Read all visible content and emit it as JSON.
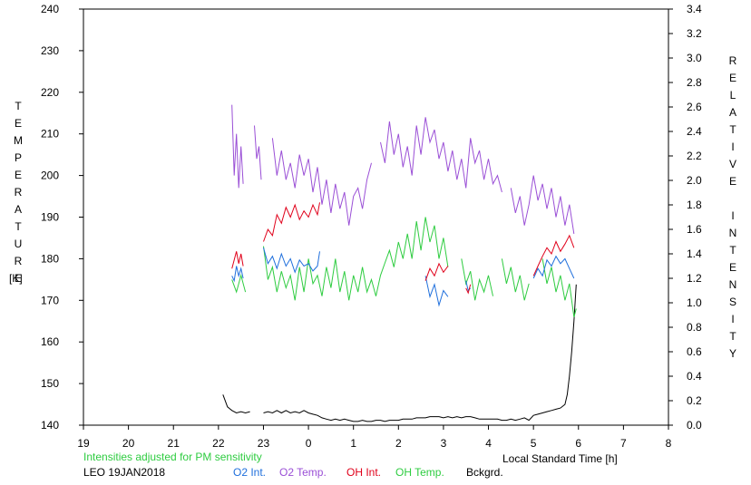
{
  "chart_data": {
    "type": "line",
    "xlabel": "Local Standard Time [h]",
    "ylabel_left": "TEMPERATURE",
    "ylabel_left_unit": "[K]",
    "ylabel_right": "RELATIVE INTENSITY",
    "note": "Intensities adjusted for PM sensitivity",
    "station_date": "LEO 19JAN2018",
    "x_ticks": [
      "19",
      "20",
      "21",
      "22",
      "23",
      "0",
      "1",
      "2",
      "3",
      "4",
      "5",
      "6",
      "7",
      "8"
    ],
    "xlim": [
      19,
      32
    ],
    "y_left_ticks": [
      "140",
      "150",
      "160",
      "170",
      "180",
      "190",
      "200",
      "210",
      "220",
      "230",
      "240"
    ],
    "ylim_left": [
      140,
      240
    ],
    "y_right_ticks": [
      "0.0",
      "0.2",
      "0.4",
      "0.6",
      "0.8",
      "1.0",
      "1.2",
      "1.4",
      "1.6",
      "1.8",
      "2.0",
      "2.2",
      "2.4",
      "2.6",
      "2.8",
      "3.0",
      "3.2",
      "3.4"
    ],
    "ylim_right": [
      0,
      3.4
    ],
    "grid": false,
    "legend_position": "bottom",
    "series": [
      {
        "name": "O2 Int.",
        "axis": "right",
        "color": "#1f6fdc",
        "points": [
          [
            22.3,
            1.22
          ],
          [
            22.35,
            1.18
          ],
          [
            22.4,
            1.3
          ],
          [
            22.45,
            1.22
          ],
          [
            22.5,
            1.28
          ],
          [
            22.55,
            1.2
          ],
          [
            23.0,
            1.45
          ],
          [
            23.1,
            1.32
          ],
          [
            23.2,
            1.38
          ],
          [
            23.3,
            1.28
          ],
          [
            23.4,
            1.4
          ],
          [
            23.5,
            1.3
          ],
          [
            23.6,
            1.36
          ],
          [
            23.7,
            1.25
          ],
          [
            23.8,
            1.35
          ],
          [
            23.9,
            1.3
          ],
          [
            24.0,
            1.32
          ],
          [
            24.1,
            1.26
          ],
          [
            24.2,
            1.3
          ],
          [
            24.25,
            1.42
          ],
          [
            26.6,
            1.22
          ],
          [
            26.7,
            1.05
          ],
          [
            26.8,
            1.15
          ],
          [
            26.9,
            0.98
          ],
          [
            27.0,
            1.1
          ],
          [
            27.1,
            1.05
          ],
          [
            27.5,
            1.18
          ],
          [
            27.55,
            1.1
          ],
          [
            27.6,
            1.12
          ],
          [
            29.0,
            1.2
          ],
          [
            29.1,
            1.28
          ],
          [
            29.2,
            1.22
          ],
          [
            29.3,
            1.35
          ],
          [
            29.4,
            1.3
          ],
          [
            29.5,
            1.38
          ],
          [
            29.6,
            1.32
          ],
          [
            29.7,
            1.36
          ],
          [
            29.8,
            1.28
          ],
          [
            29.9,
            1.2
          ]
        ]
      },
      {
        "name": "O2 Temp.",
        "axis": "left",
        "color": "#9a4fd6",
        "points": [
          [
            22.3,
            217
          ],
          [
            22.35,
            200
          ],
          [
            22.4,
            210
          ],
          [
            22.45,
            197
          ],
          [
            22.5,
            207
          ],
          [
            22.55,
            198
          ],
          [
            22.8,
            212
          ],
          [
            22.85,
            204
          ],
          [
            22.9,
            207
          ],
          [
            22.95,
            199
          ],
          [
            23.2,
            209
          ],
          [
            23.3,
            200
          ],
          [
            23.4,
            206
          ],
          [
            23.5,
            199
          ],
          [
            23.6,
            203
          ],
          [
            23.7,
            197
          ],
          [
            23.8,
            205
          ],
          [
            23.9,
            200
          ],
          [
            24.0,
            204
          ],
          [
            24.1,
            196
          ],
          [
            24.2,
            202
          ],
          [
            24.3,
            193
          ],
          [
            24.4,
            199
          ],
          [
            24.5,
            191
          ],
          [
            24.6,
            198
          ],
          [
            24.7,
            192
          ],
          [
            24.8,
            196
          ],
          [
            24.9,
            188
          ],
          [
            25.0,
            195
          ],
          [
            25.1,
            197
          ],
          [
            25.2,
            192
          ],
          [
            25.3,
            199
          ],
          [
            25.4,
            203
          ],
          [
            25.6,
            208
          ],
          [
            25.7,
            203
          ],
          [
            25.8,
            213
          ],
          [
            25.9,
            205
          ],
          [
            26.0,
            210
          ],
          [
            26.1,
            202
          ],
          [
            26.2,
            207
          ],
          [
            26.3,
            200
          ],
          [
            26.4,
            212
          ],
          [
            26.5,
            205
          ],
          [
            26.6,
            214
          ],
          [
            26.7,
            208
          ],
          [
            26.8,
            211
          ],
          [
            26.9,
            204
          ],
          [
            27.0,
            208
          ],
          [
            27.1,
            201
          ],
          [
            27.2,
            206
          ],
          [
            27.3,
            199
          ],
          [
            27.4,
            204
          ],
          [
            27.5,
            197
          ],
          [
            27.6,
            209
          ],
          [
            27.7,
            203
          ],
          [
            27.8,
            206
          ],
          [
            27.9,
            199
          ],
          [
            28.0,
            204
          ],
          [
            28.1,
            198
          ],
          [
            28.2,
            200
          ],
          [
            28.3,
            196
          ],
          [
            28.5,
            197
          ],
          [
            28.6,
            191
          ],
          [
            28.7,
            195
          ],
          [
            28.8,
            188
          ],
          [
            28.9,
            193
          ],
          [
            29.0,
            200
          ],
          [
            29.1,
            194
          ],
          [
            29.2,
            198
          ],
          [
            29.3,
            192
          ],
          [
            29.4,
            197
          ],
          [
            29.5,
            190
          ],
          [
            29.6,
            195
          ],
          [
            29.7,
            188
          ],
          [
            29.8,
            193
          ],
          [
            29.9,
            186
          ]
        ]
      },
      {
        "name": "OH Int.",
        "axis": "right",
        "color": "#e0001a",
        "points": [
          [
            22.3,
            1.28
          ],
          [
            22.35,
            1.35
          ],
          [
            22.4,
            1.42
          ],
          [
            22.45,
            1.32
          ],
          [
            22.5,
            1.4
          ],
          [
            22.55,
            1.3
          ],
          [
            23.0,
            1.5
          ],
          [
            23.1,
            1.6
          ],
          [
            23.2,
            1.55
          ],
          [
            23.3,
            1.72
          ],
          [
            23.4,
            1.65
          ],
          [
            23.5,
            1.78
          ],
          [
            23.6,
            1.7
          ],
          [
            23.7,
            1.8
          ],
          [
            23.8,
            1.68
          ],
          [
            23.9,
            1.75
          ],
          [
            24.0,
            1.7
          ],
          [
            24.1,
            1.8
          ],
          [
            24.2,
            1.72
          ],
          [
            24.25,
            1.82
          ],
          [
            26.6,
            1.18
          ],
          [
            26.7,
            1.28
          ],
          [
            26.8,
            1.22
          ],
          [
            26.9,
            1.32
          ],
          [
            27.0,
            1.25
          ],
          [
            27.1,
            1.3
          ],
          [
            27.5,
            1.12
          ],
          [
            27.55,
            1.08
          ],
          [
            27.6,
            1.15
          ],
          [
            29.0,
            1.22
          ],
          [
            29.1,
            1.3
          ],
          [
            29.2,
            1.38
          ],
          [
            29.3,
            1.45
          ],
          [
            29.4,
            1.4
          ],
          [
            29.5,
            1.5
          ],
          [
            29.6,
            1.42
          ],
          [
            29.7,
            1.48
          ],
          [
            29.8,
            1.55
          ],
          [
            29.9,
            1.45
          ]
        ]
      },
      {
        "name": "OH Temp.",
        "axis": "left",
        "color": "#2ecc40",
        "points": [
          [
            22.3,
            175
          ],
          [
            22.4,
            172
          ],
          [
            22.5,
            176
          ],
          [
            22.6,
            172
          ],
          [
            23.0,
            183
          ],
          [
            23.1,
            175
          ],
          [
            23.2,
            178
          ],
          [
            23.3,
            172
          ],
          [
            23.4,
            177
          ],
          [
            23.5,
            173
          ],
          [
            23.6,
            176
          ],
          [
            23.7,
            170
          ],
          [
            23.8,
            178
          ],
          [
            23.9,
            172
          ],
          [
            24.0,
            180
          ],
          [
            24.1,
            174
          ],
          [
            24.2,
            176
          ],
          [
            24.3,
            171
          ],
          [
            24.4,
            178
          ],
          [
            24.5,
            173
          ],
          [
            24.6,
            180
          ],
          [
            24.7,
            172
          ],
          [
            24.8,
            177
          ],
          [
            24.9,
            170
          ],
          [
            25.0,
            176
          ],
          [
            25.1,
            172
          ],
          [
            25.2,
            178
          ],
          [
            25.3,
            172
          ],
          [
            25.4,
            175
          ],
          [
            25.5,
            171
          ],
          [
            25.6,
            176
          ],
          [
            25.7,
            179
          ],
          [
            25.8,
            182
          ],
          [
            25.9,
            178
          ],
          [
            26.0,
            184
          ],
          [
            26.1,
            180
          ],
          [
            26.2,
            186
          ],
          [
            26.3,
            180
          ],
          [
            26.4,
            189
          ],
          [
            26.5,
            182
          ],
          [
            26.6,
            190
          ],
          [
            26.7,
            184
          ],
          [
            26.8,
            188
          ],
          [
            26.9,
            180
          ],
          [
            27.0,
            185
          ],
          [
            27.1,
            178
          ],
          [
            27.4,
            180
          ],
          [
            27.5,
            174
          ],
          [
            27.6,
            177
          ],
          [
            27.7,
            170
          ],
          [
            27.8,
            175
          ],
          [
            27.9,
            172
          ],
          [
            28.0,
            176
          ],
          [
            28.1,
            171
          ],
          [
            28.3,
            180
          ],
          [
            28.4,
            174
          ],
          [
            28.5,
            178
          ],
          [
            28.6,
            172
          ],
          [
            28.7,
            176
          ],
          [
            28.8,
            170
          ],
          [
            28.9,
            174
          ],
          [
            29.2,
            180
          ],
          [
            29.3,
            174
          ],
          [
            29.4,
            178
          ],
          [
            29.5,
            172
          ],
          [
            29.6,
            176
          ],
          [
            29.7,
            170
          ],
          [
            29.8,
            174
          ],
          [
            29.9,
            166
          ],
          [
            29.95,
            168
          ]
        ]
      },
      {
        "name": "Bckgrd.",
        "axis": "right",
        "color": "#000000",
        "points": [
          [
            22.1,
            0.25
          ],
          [
            22.2,
            0.15
          ],
          [
            22.3,
            0.12
          ],
          [
            22.4,
            0.1
          ],
          [
            22.5,
            0.11
          ],
          [
            22.6,
            0.1
          ],
          [
            22.7,
            0.11
          ],
          [
            23.0,
            0.1
          ],
          [
            23.1,
            0.11
          ],
          [
            23.2,
            0.1
          ],
          [
            23.3,
            0.12
          ],
          [
            23.4,
            0.1
          ],
          [
            23.5,
            0.12
          ],
          [
            23.6,
            0.1
          ],
          [
            23.7,
            0.11
          ],
          [
            23.8,
            0.1
          ],
          [
            23.9,
            0.12
          ],
          [
            24.0,
            0.1
          ],
          [
            24.1,
            0.09
          ],
          [
            24.2,
            0.08
          ],
          [
            24.3,
            0.06
          ],
          [
            24.4,
            0.05
          ],
          [
            24.5,
            0.04
          ],
          [
            24.6,
            0.05
          ],
          [
            24.7,
            0.04
          ],
          [
            24.8,
            0.05
          ],
          [
            24.9,
            0.04
          ],
          [
            25.0,
            0.03
          ],
          [
            25.1,
            0.03
          ],
          [
            25.2,
            0.04
          ],
          [
            25.3,
            0.03
          ],
          [
            25.4,
            0.03
          ],
          [
            25.5,
            0.04
          ],
          [
            25.6,
            0.04
          ],
          [
            25.7,
            0.03
          ],
          [
            25.8,
            0.04
          ],
          [
            25.9,
            0.04
          ],
          [
            26.0,
            0.04
          ],
          [
            26.1,
            0.05
          ],
          [
            26.2,
            0.05
          ],
          [
            26.3,
            0.05
          ],
          [
            26.4,
            0.06
          ],
          [
            26.5,
            0.06
          ],
          [
            26.6,
            0.06
          ],
          [
            26.7,
            0.07
          ],
          [
            26.8,
            0.07
          ],
          [
            26.9,
            0.07
          ],
          [
            27.0,
            0.06
          ],
          [
            27.1,
            0.07
          ],
          [
            27.2,
            0.06
          ],
          [
            27.3,
            0.07
          ],
          [
            27.4,
            0.06
          ],
          [
            27.5,
            0.07
          ],
          [
            27.6,
            0.07
          ],
          [
            27.7,
            0.06
          ],
          [
            27.8,
            0.05
          ],
          [
            27.9,
            0.05
          ],
          [
            28.0,
            0.05
          ],
          [
            28.1,
            0.05
          ],
          [
            28.2,
            0.05
          ],
          [
            28.3,
            0.04
          ],
          [
            28.4,
            0.04
          ],
          [
            28.5,
            0.05
          ],
          [
            28.6,
            0.04
          ],
          [
            28.7,
            0.05
          ],
          [
            28.8,
            0.06
          ],
          [
            28.9,
            0.04
          ],
          [
            29.0,
            0.08
          ],
          [
            29.1,
            0.09
          ],
          [
            29.2,
            0.1
          ],
          [
            29.3,
            0.11
          ],
          [
            29.4,
            0.12
          ],
          [
            29.5,
            0.13
          ],
          [
            29.6,
            0.14
          ],
          [
            29.7,
            0.17
          ],
          [
            29.75,
            0.25
          ],
          [
            29.8,
            0.4
          ],
          [
            29.85,
            0.6
          ],
          [
            29.9,
            0.85
          ],
          [
            29.95,
            1.15
          ]
        ]
      }
    ]
  }
}
